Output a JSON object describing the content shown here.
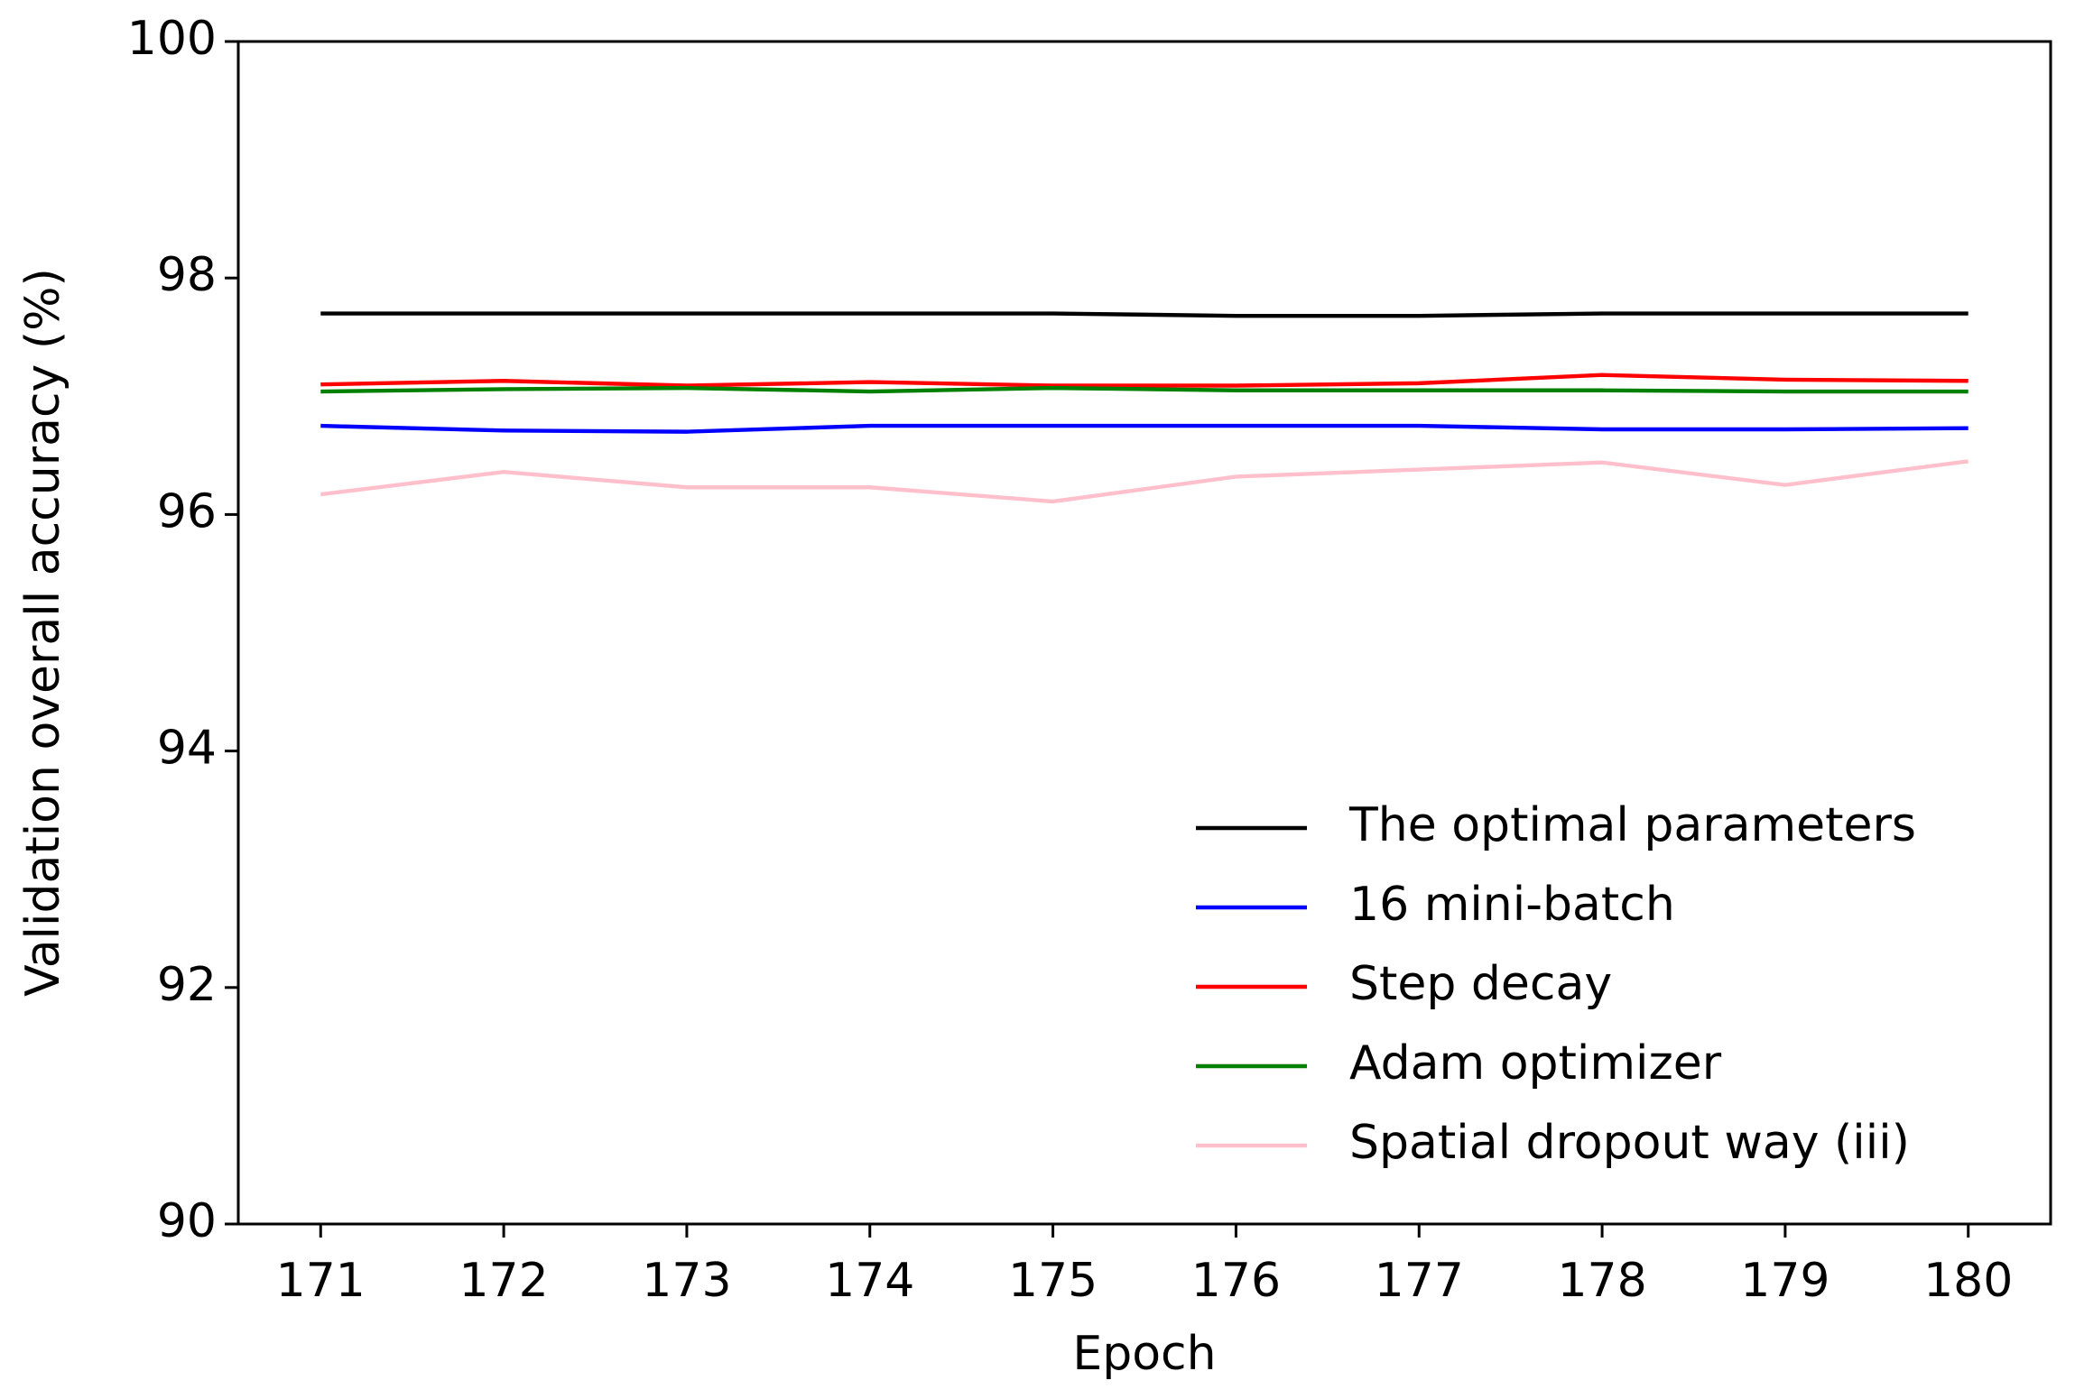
{
  "chart_data": {
    "type": "line",
    "xlabel": "Epoch",
    "ylabel": "Validation overall accuracy (%)",
    "x": [
      171,
      172,
      173,
      174,
      175,
      176,
      177,
      178,
      179,
      180
    ],
    "xlim": [
      170.55,
      180.45
    ],
    "xticks": [
      171,
      172,
      173,
      174,
      175,
      176,
      177,
      178,
      179,
      180
    ],
    "ylim": [
      90,
      100
    ],
    "yticks": [
      90,
      92,
      94,
      96,
      98,
      100
    ],
    "legend": "lower right",
    "series": [
      {
        "name": "The optimal parameters",
        "color": "#000000",
        "values": [
          97.7,
          97.7,
          97.7,
          97.7,
          97.7,
          97.68,
          97.68,
          97.7,
          97.7,
          97.7
        ]
      },
      {
        "name": "16 mini-batch",
        "color": "#0000ff",
        "values": [
          96.75,
          96.71,
          96.7,
          96.75,
          96.75,
          96.75,
          96.75,
          96.72,
          96.72,
          96.73
        ]
      },
      {
        "name": "Step decay",
        "color": "#ff0000",
        "values": [
          97.1,
          97.13,
          97.09,
          97.12,
          97.09,
          97.09,
          97.11,
          97.18,
          97.14,
          97.13
        ]
      },
      {
        "name": "Adam optimizer",
        "color": "#008000",
        "values": [
          97.04,
          97.06,
          97.07,
          97.04,
          97.07,
          97.05,
          97.05,
          97.05,
          97.04,
          97.04
        ]
      },
      {
        "name": "Spatial dropout way (iii)",
        "color": "#ffc0cb",
        "values": [
          96.17,
          96.36,
          96.23,
          96.23,
          96.11,
          96.32,
          96.38,
          96.44,
          96.25,
          96.45
        ]
      }
    ]
  }
}
